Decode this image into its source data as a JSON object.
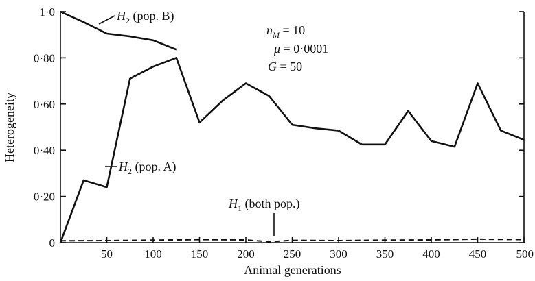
{
  "chart_data": {
    "type": "line",
    "title": "",
    "xlabel": "Animal generations",
    "ylabel": "Heterogeneity",
    "xlim": [
      0,
      500
    ],
    "ylim": [
      0,
      1.0
    ],
    "x_ticks": [
      50,
      100,
      150,
      200,
      250,
      300,
      350,
      400,
      450,
      500
    ],
    "y_ticks": [
      {
        "value": 0,
        "label": "0"
      },
      {
        "value": 0.2,
        "label": "0·20"
      },
      {
        "value": 0.4,
        "label": "0·40"
      },
      {
        "value": 0.6,
        "label": "0·60"
      },
      {
        "value": 0.8,
        "label": "0·80"
      },
      {
        "value": 1.0,
        "label": "1·0"
      }
    ],
    "grid": false,
    "series": [
      {
        "name": "H2 (pop. B)",
        "style": "solid",
        "points": [
          [
            0,
            1.0
          ],
          [
            25,
            0.955
          ],
          [
            50,
            0.905
          ],
          [
            75,
            0.893
          ],
          [
            100,
            0.876
          ],
          [
            125,
            0.836
          ]
        ]
      },
      {
        "name": "H2 (pop. A)",
        "style": "solid",
        "points": [
          [
            0,
            0.0
          ],
          [
            25,
            0.27
          ],
          [
            50,
            0.24
          ],
          [
            75,
            0.71
          ],
          [
            100,
            0.762
          ],
          [
            125,
            0.8
          ],
          [
            150,
            0.52
          ],
          [
            175,
            0.615
          ],
          [
            200,
            0.69
          ],
          [
            225,
            0.635
          ],
          [
            250,
            0.51
          ],
          [
            275,
            0.495
          ],
          [
            300,
            0.485
          ],
          [
            325,
            0.425
          ],
          [
            350,
            0.425
          ],
          [
            375,
            0.57
          ],
          [
            400,
            0.44
          ],
          [
            425,
            0.415
          ],
          [
            450,
            0.69
          ],
          [
            475,
            0.485
          ],
          [
            500,
            0.445
          ]
        ]
      },
      {
        "name": "H1 (both pop.)",
        "style": "dashed",
        "points": [
          [
            0,
            0.008
          ],
          [
            50,
            0.009
          ],
          [
            100,
            0.011
          ],
          [
            150,
            0.013
          ],
          [
            200,
            0.012
          ],
          [
            225,
            0.004
          ],
          [
            250,
            0.01
          ],
          [
            300,
            0.009
          ],
          [
            350,
            0.011
          ],
          [
            400,
            0.012
          ],
          [
            450,
            0.015
          ],
          [
            500,
            0.013
          ]
        ]
      }
    ],
    "labels": {
      "pop_b": {
        "H": "H",
        "sub": "2",
        "rest": " (pop. B)"
      },
      "pop_a": {
        "H": "H",
        "sub": "2",
        "rest": " (pop. A)"
      },
      "both": {
        "H": "H",
        "sub": "1",
        "rest": " (both pop.)"
      }
    },
    "params": {
      "nM": {
        "sym": "n",
        "sub": "M",
        "rest": " = 10"
      },
      "mu": {
        "sym": "μ",
        "rest": " = 0·0001"
      },
      "G": {
        "sym": "G",
        "rest": " = 50"
      }
    }
  }
}
